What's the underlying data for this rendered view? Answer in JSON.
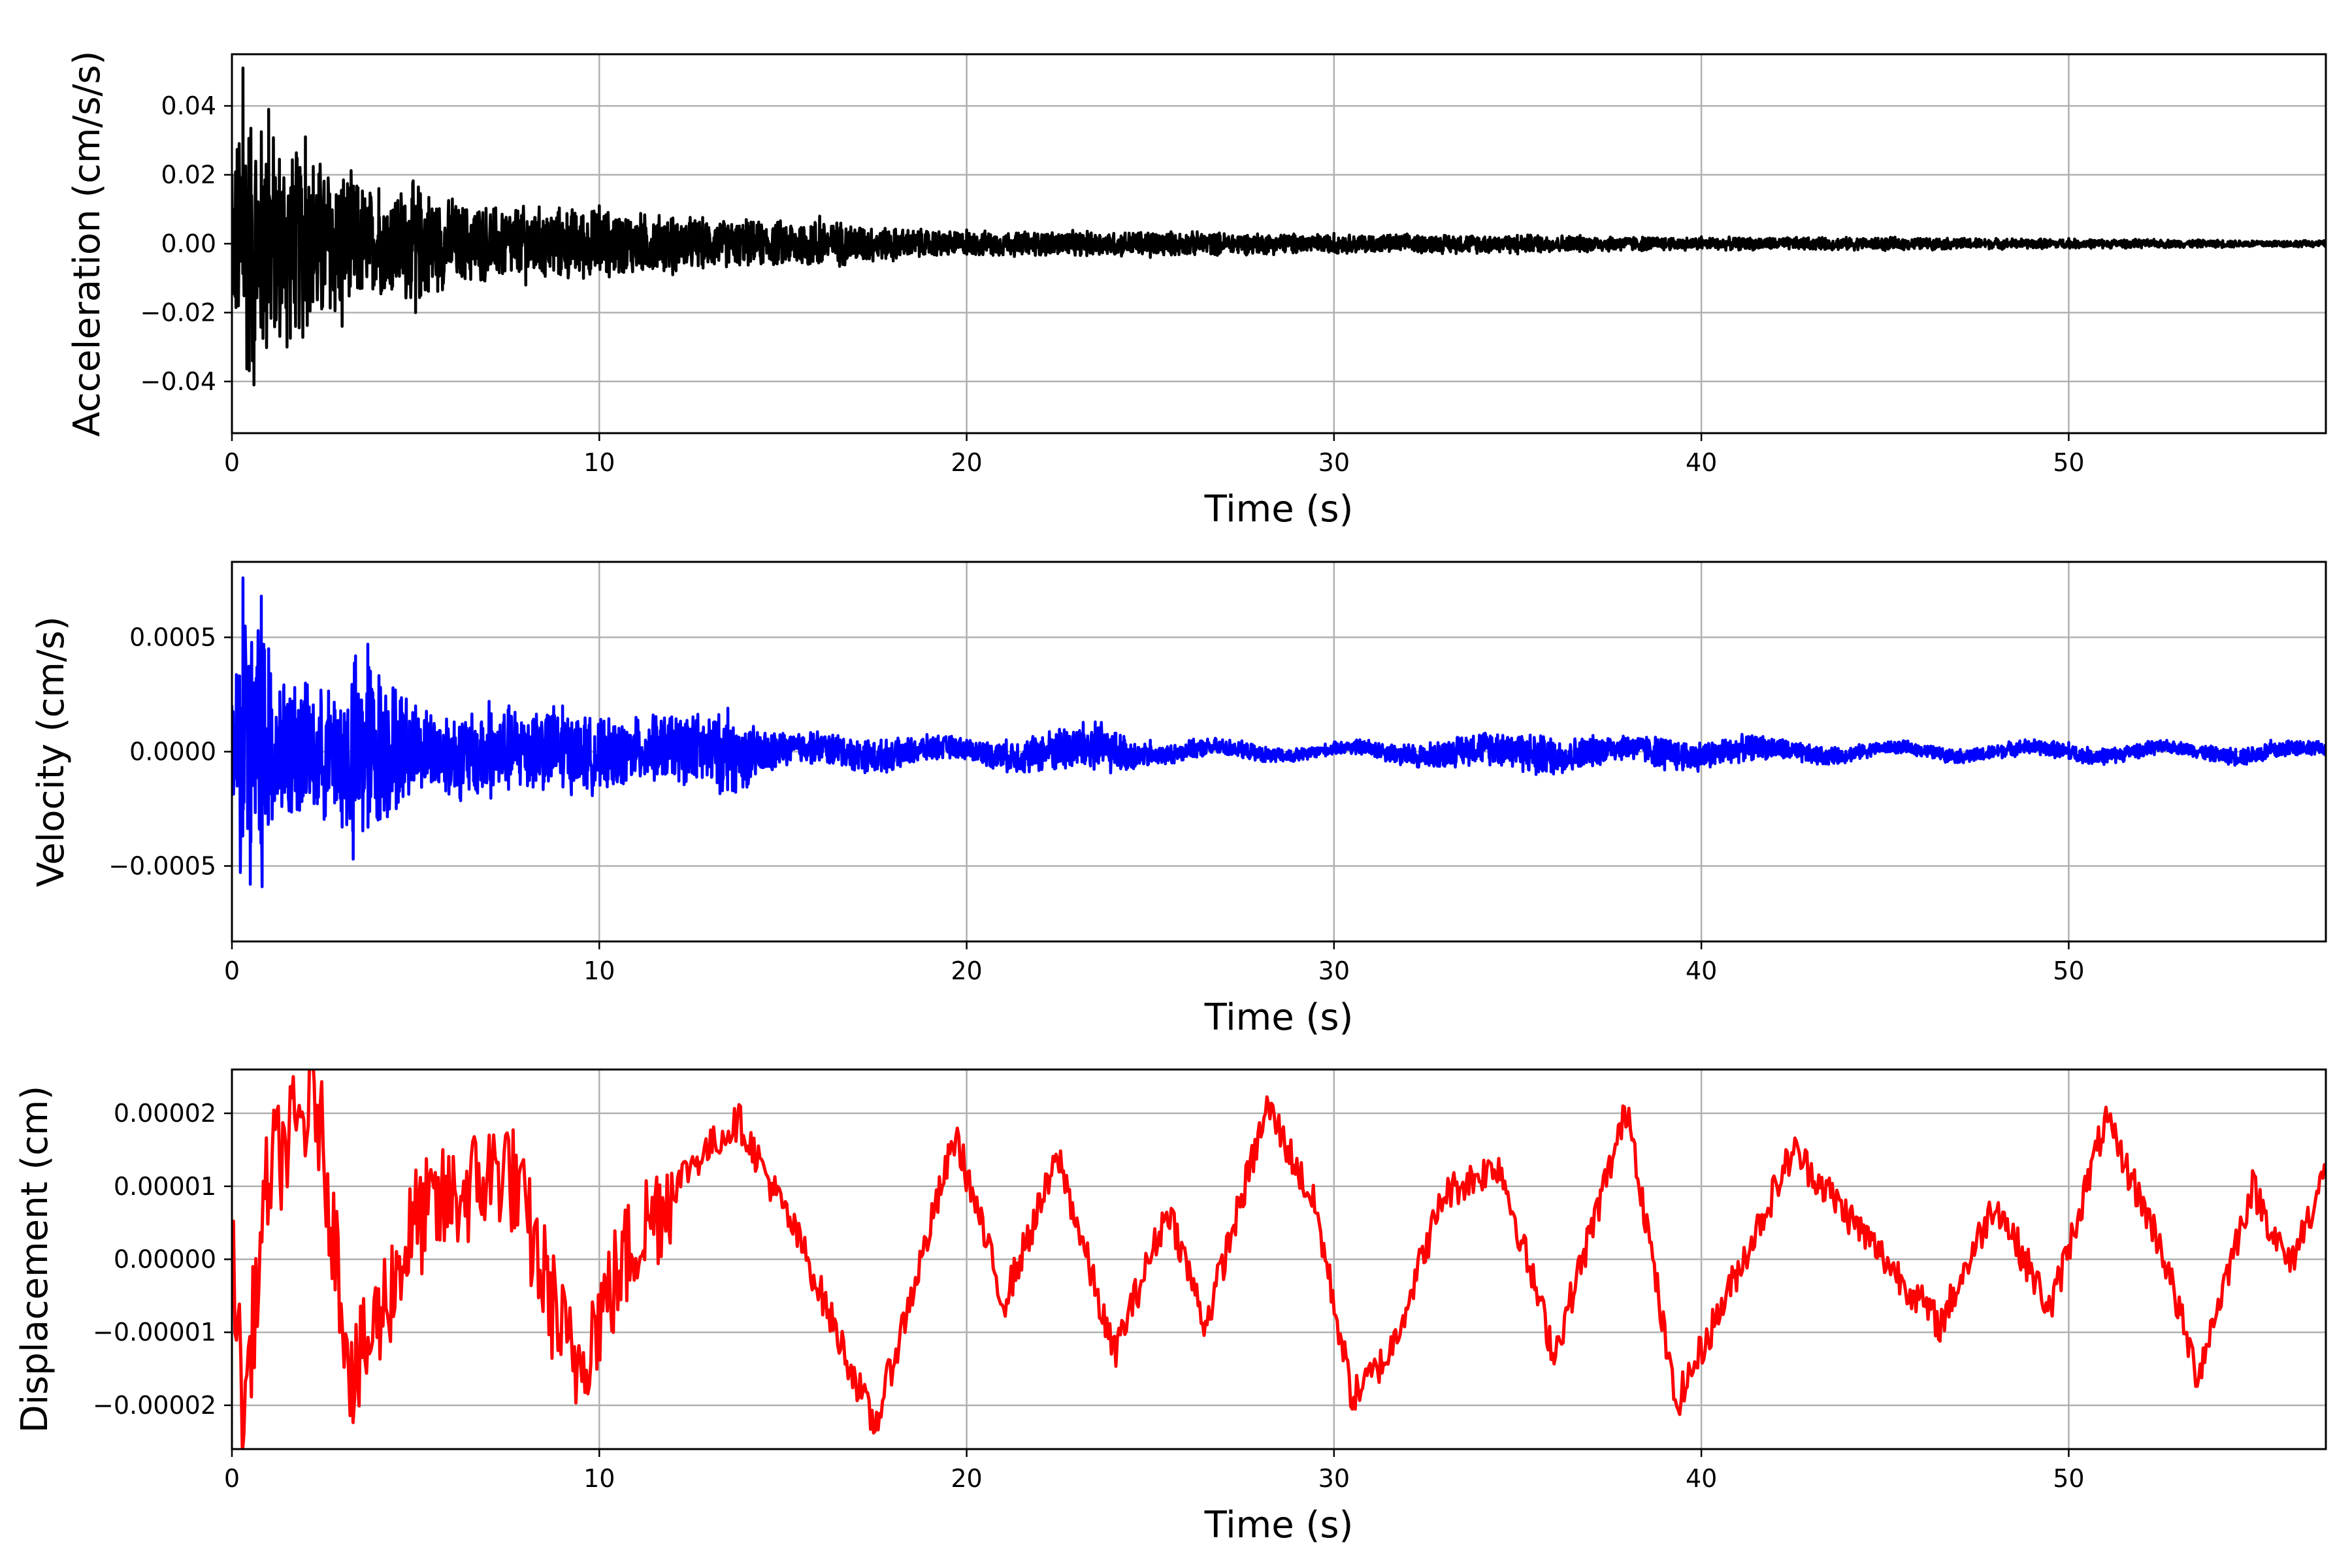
{
  "figure": {
    "layout": "3 stacked subplots sharing a time axis"
  },
  "chart_data": [
    {
      "type": "line",
      "xlabel": "Time (s)",
      "ylabel": "Acceleration (cm/s/s)",
      "color": "#000000",
      "grid": true,
      "xlim": [
        0,
        57
      ],
      "ylim": [
        -0.055,
        0.055
      ],
      "xticks": [
        0,
        10,
        20,
        30,
        40,
        50
      ],
      "xtick_labels": [
        "0",
        "10",
        "20",
        "30",
        "40",
        "50"
      ],
      "yticks": [
        -0.04,
        -0.02,
        0.0,
        0.02,
        0.04
      ],
      "ytick_labels": [
        "−0.04",
        "−0.02",
        "0.00",
        "0.02",
        "0.04"
      ],
      "series": [
        {
          "x": [
            0,
            0.3,
            0.6,
            1,
            1.5,
            2,
            3,
            4,
            5,
            6,
            8,
            10,
            12,
            14,
            16,
            18,
            20,
            25,
            30,
            35,
            40,
            45,
            50,
            57
          ],
          "y": [
            0.02,
            0.051,
            -0.041,
            0.039,
            -0.03,
            0.031,
            -0.024,
            0.016,
            -0.02,
            0.013,
            -0.012,
            0.011,
            -0.009,
            0.007,
            0.008,
            -0.005,
            0.004,
            -0.004,
            0.003,
            -0.003,
            0.002,
            -0.002,
            0.0015,
            0.001
          ]
        }
      ]
    },
    {
      "type": "line",
      "xlabel": "Time (s)",
      "ylabel": "Velocity (cm/s)",
      "color": "#0000ff",
      "grid": true,
      "xlim": [
        0,
        57
      ],
      "ylim": [
        -0.00083,
        0.00083
      ],
      "xticks": [
        0,
        10,
        20,
        30,
        40,
        50
      ],
      "xtick_labels": [
        "0",
        "10",
        "20",
        "30",
        "40",
        "50"
      ],
      "yticks": [
        -0.0005,
        0.0,
        0.0005
      ],
      "ytick_labels": [
        "−0.0005",
        "0.0000",
        "0.0005"
      ],
      "series": [
        {
          "x": [
            0,
            0.3,
            0.5,
            0.8,
            1,
            2,
            3,
            3.3,
            3.7,
            5,
            7,
            9,
            11,
            13.5,
            15,
            17.5,
            20,
            23.5,
            25,
            30,
            35.5,
            38,
            39,
            45,
            50,
            51,
            53,
            55.5,
            57
          ],
          "y": [
            0.0002,
            0.00076,
            -0.00058,
            0.00068,
            0.00045,
            0.0003,
            -0.00033,
            -0.00047,
            0.00047,
            0.0002,
            0.00022,
            0.0002,
            0.00015,
            0.00019,
            8e-05,
            -8e-05,
            5e-05,
            0.00013,
            5e-05,
            3e-05,
            -0.0001,
            6e-05,
            -8e-05,
            3e-05,
            4e-05,
            -4e-05,
            3e-05,
            5e-05,
            3e-05
          ]
        }
      ]
    },
    {
      "type": "line",
      "xlabel": "Time (s)",
      "ylabel": "Displacement (cm)",
      "color": "#ff0000",
      "grid": true,
      "xlim": [
        0,
        57
      ],
      "ylim": [
        -2.6e-05,
        2.6e-05
      ],
      "xticks": [
        0,
        10,
        20,
        30,
        40,
        50
      ],
      "xtick_labels": [
        "0",
        "10",
        "20",
        "30",
        "40",
        "50"
      ],
      "yticks": [
        -2e-05,
        -1e-05,
        0.0,
        1e-05,
        2e-05
      ],
      "ytick_labels": [
        "−0.00002",
        "−0.00001",
        "0.00000",
        "0.00001",
        "0.00002"
      ],
      "series": [
        {
          "x": [
            0,
            0.3,
            1,
            2.3,
            3.3,
            5,
            7.5,
            9.3,
            11,
            12.5,
            13.8,
            15.5,
            17.5,
            19.7,
            21,
            22.5,
            24,
            25.5,
            26.5,
            28.2,
            29.5,
            30.5,
            31.5,
            33,
            34.5,
            36,
            38,
            39.3,
            40.5,
            42.5,
            44.5,
            46.5,
            48,
            49.5,
            51,
            52.5,
            53.5,
            55,
            56,
            57
          ],
          "y": [
            5e-06,
            -2.2e-05,
            1.2e-05,
            2.2e-05,
            -1.7e-05,
            5e-06,
            1.3e-05,
            -1.5e-05,
            3e-06,
            1.3e-05,
            1.9e-05,
            2e-06,
            -2.3e-05,
            1.7e-05,
            -6e-06,
            1.4e-05,
            -1.3e-05,
            7e-06,
            -9e-06,
            2.1e-05,
            7e-06,
            -1.9e-05,
            -1.3e-05,
            9e-06,
            1.3e-05,
            -1.3e-05,
            2.1e-05,
            -2e-05,
            -7e-06,
            1.5e-05,
            3e-06,
            -9e-06,
            8e-06,
            -7e-06,
            1.9e-05,
            2e-06,
            -1.6e-05,
            1e-05,
            -1e-06,
            1.2e-05
          ]
        }
      ]
    }
  ]
}
